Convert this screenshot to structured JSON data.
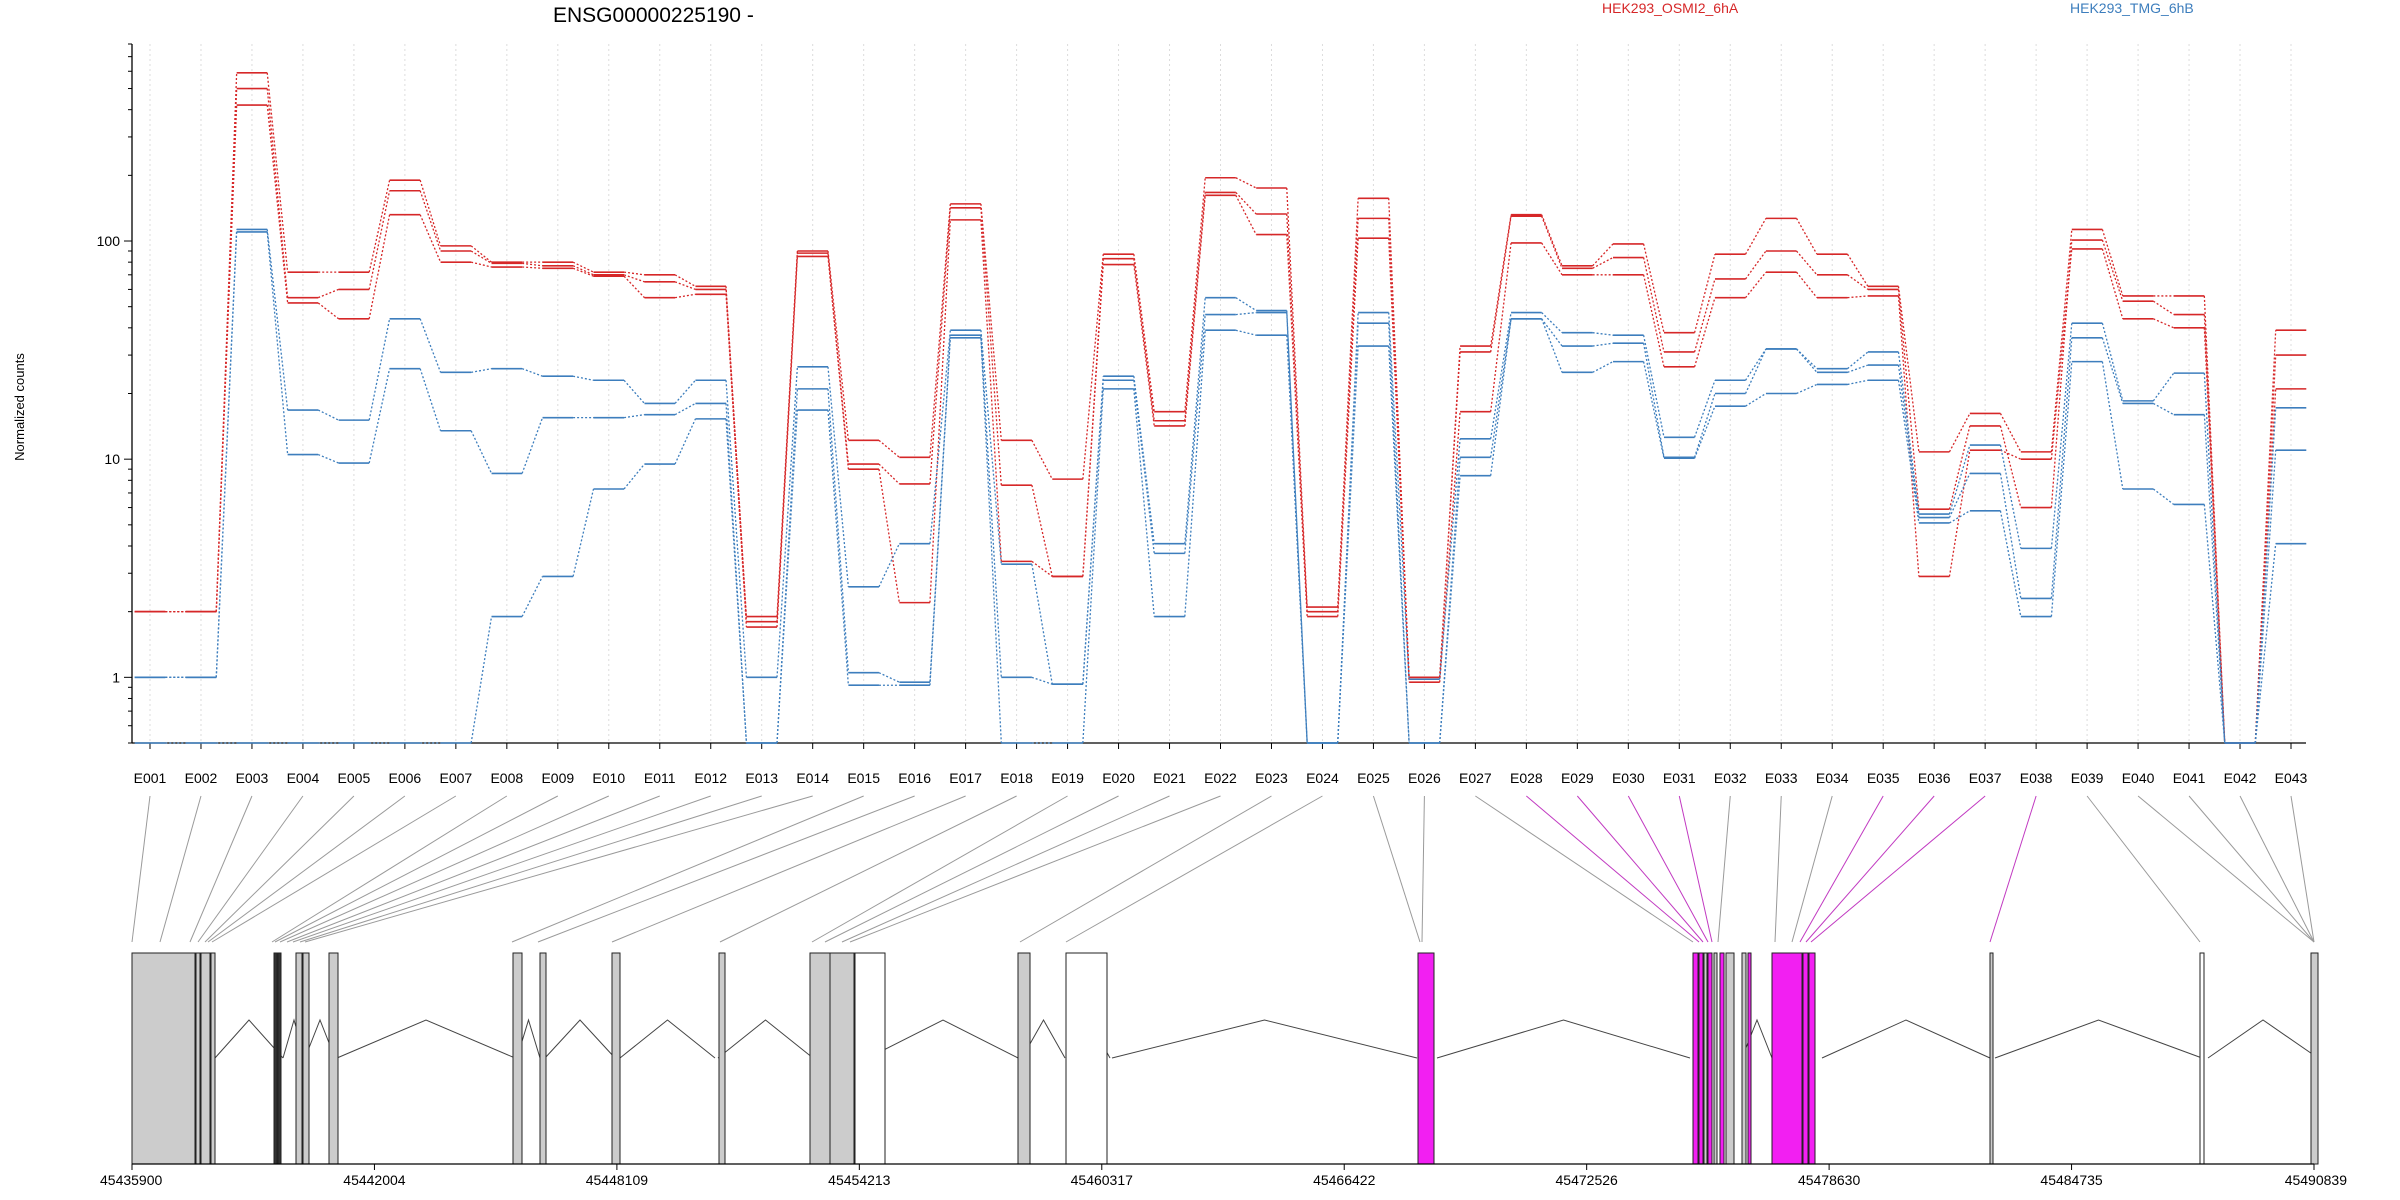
{
  "chart_data": {
    "type": "line",
    "title": "ENSG00000225190 -",
    "ylabel": "Normalized counts",
    "xlabel": "",
    "y_scale": "log",
    "ylim": [
      0.5,
      800
    ],
    "y_ticks": [
      1,
      10,
      100
    ],
    "y_tick_labels": [
      "1",
      "10",
      "100"
    ],
    "grid": "vertical dotted lines at each exon",
    "legend": "top (two colored labels)",
    "categories": [
      "E001",
      "E002",
      "E003",
      "E004",
      "E005",
      "E006",
      "E007",
      "E008",
      "E009",
      "E010",
      "E011",
      "E012",
      "E013",
      "E014",
      "E015",
      "E016",
      "E017",
      "E018",
      "E019",
      "E020",
      "E021",
      "E022",
      "E023",
      "E024",
      "E025",
      "E026",
      "E027",
      "E028",
      "E029",
      "E030",
      "E031",
      "E032",
      "E033",
      "E034",
      "E035",
      "E036",
      "E037",
      "E038",
      "E039",
      "E040",
      "E041",
      "E042",
      "E043"
    ],
    "groups": [
      {
        "name": "HEK293_OSMI2_6hA",
        "color": "#d62728"
      },
      {
        "name": "HEK293_TMG_6hB",
        "color": "#3d7ebd"
      }
    ],
    "series": [
      {
        "group": "HEK293_OSMI2_6hA",
        "values": [
          2,
          2,
          590,
          72,
          72,
          190,
          95,
          80,
          80,
          72,
          70,
          62,
          1.9,
          90,
          12.2,
          10.2,
          148,
          12.2,
          8.1,
          87,
          16.5,
          195,
          175,
          2.1,
          157,
          1.0,
          33,
          132,
          77,
          97,
          38,
          87,
          127,
          87,
          62,
          10.8,
          16.2,
          10.8,
          113,
          56,
          56,
          0.5,
          39
        ]
      },
      {
        "group": "HEK293_OSMI2_6hA",
        "values": [
          2,
          2,
          500,
          55,
          60,
          170,
          90,
          79,
          77,
          70,
          65,
          60,
          1.8,
          88,
          9.5,
          7.7,
          142,
          7.6,
          2.9,
          83,
          15,
          167,
          133,
          2.0,
          127,
          1.0,
          31,
          130,
          75,
          84,
          31,
          67,
          90,
          70,
          60,
          5.9,
          14.2,
          6.0,
          101,
          53,
          46,
          0.5,
          30
        ]
      },
      {
        "group": "HEK293_OSMI2_6hA",
        "values": [
          2,
          2,
          420,
          52,
          44,
          132,
          80,
          76,
          75,
          69,
          55,
          57,
          1.7,
          85,
          9.0,
          2.2,
          125,
          3.4,
          2.9,
          78,
          14.2,
          162,
          107,
          1.9,
          103,
          0.95,
          16.5,
          98,
          70,
          70,
          26.5,
          55,
          72,
          55,
          56,
          2.9,
          11.0,
          10.0,
          92,
          44,
          40,
          0.5,
          21
        ]
      },
      {
        "group": "HEK293_TMG_6hB",
        "values": [
          1,
          1,
          113,
          16.8,
          15.1,
          44,
          25,
          26,
          24,
          23,
          18,
          23,
          1.0,
          26.5,
          2.6,
          4.1,
          39,
          3.3,
          0.93,
          24,
          4.1,
          55,
          48,
          0.5,
          47,
          0.98,
          12.4,
          47,
          38,
          37,
          12.6,
          23,
          32,
          26,
          31,
          5.6,
          11.6,
          3.9,
          42,
          18.5,
          24.8,
          0.5,
          17.2
        ]
      },
      {
        "group": "HEK293_TMG_6hB",
        "values": [
          1,
          1,
          110,
          10.5,
          9.6,
          26,
          13.5,
          8.6,
          15.5,
          15.5,
          16,
          18,
          0.5,
          21,
          1.05,
          0.95,
          37,
          1.0,
          0.93,
          23,
          3.7,
          46,
          47,
          0.5,
          42,
          0.5,
          10.2,
          44,
          33,
          34,
          10.2,
          20,
          32,
          25,
          27,
          5.4,
          8.6,
          2.3,
          36,
          18,
          16,
          0.5,
          11
        ]
      },
      {
        "group": "HEK293_TMG_6hB",
        "values": [
          0.5,
          0.5,
          0.5,
          0.5,
          0.5,
          0.5,
          0.5,
          1.9,
          2.9,
          7.3,
          9.5,
          15.3,
          0.5,
          16.8,
          0.92,
          0.92,
          36,
          0.5,
          0.5,
          21,
          1.9,
          39,
          37,
          0.5,
          33,
          0.5,
          8.4,
          44,
          25,
          28,
          10.1,
          17.5,
          20,
          22,
          23,
          5.1,
          5.8,
          1.9,
          28,
          7.3,
          6.2,
          0.5,
          4.1
        ]
      }
    ],
    "gene_model": {
      "coordinate_ticks": [
        "45435900",
        "45442004",
        "45448109",
        "45454213",
        "45460317",
        "45466422",
        "45472526",
        "45478630",
        "45484735",
        "45490839"
      ],
      "highlight_color": "#f21ff2"
    }
  }
}
